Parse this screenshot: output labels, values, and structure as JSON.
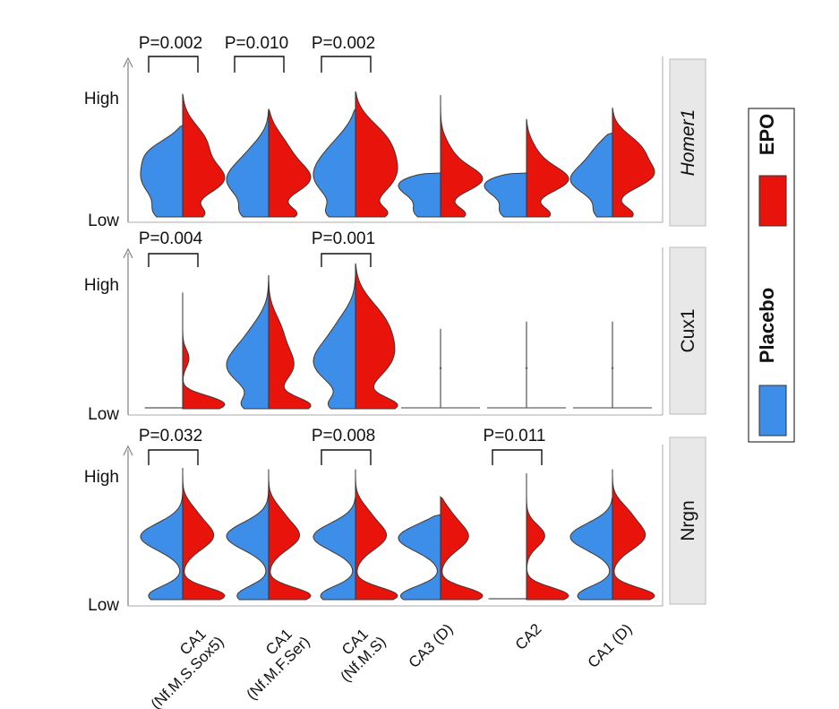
{
  "chart_data": {
    "type": "violin",
    "categories": [
      "CA1\n(Nf.M.S.Sox5)",
      "CA1\n(Nf.M.F.Ser)",
      "CA1\n(Nf.M.S)",
      "CA3 (D)",
      "CA2",
      "CA1 (D)"
    ],
    "y_axis": {
      "high_label": "High",
      "low_label": "Low"
    },
    "legend": [
      {
        "name": "EPO",
        "color": "#e8140c"
      },
      {
        "name": "Placebo",
        "color": "#3d8ee8"
      }
    ],
    "panels": [
      {
        "gene": "Homer1",
        "italic": true,
        "pvalues": [
          {
            "category_index": 0,
            "label": "P=0.002"
          },
          {
            "category_index": 1,
            "label": "P=0.010"
          },
          {
            "category_index": 2,
            "label": "P=0.002"
          }
        ],
        "violins": [
          {
            "placebo": {
              "max": 0.73,
              "peaks": [
                [
                  0.02,
                  0.35,
                  0.08
                ],
                [
                  0.33,
                  1.0,
                  0.18
                ],
                [
                  0.55,
                  0.55,
                  0.1
                ]
              ]
            },
            "epo": {
              "max": 0.98,
              "peaks": [
                [
                  0.02,
                  0.45,
                  0.06
                ],
                [
                  0.3,
                  1.0,
                  0.12
                ],
                [
                  0.6,
                  0.75,
                  0.15
                ]
              ]
            }
          },
          {
            "placebo": {
              "max": 0.86,
              "peaks": [
                [
                  0.02,
                  0.4,
                  0.08
                ],
                [
                  0.3,
                  0.95,
                  0.15
                ],
                [
                  0.55,
                  0.3,
                  0.12
                ]
              ]
            },
            "epo": {
              "max": 0.86,
              "peaks": [
                [
                  0.02,
                  0.55,
                  0.06
                ],
                [
                  0.3,
                  0.9,
                  0.12
                ],
                [
                  0.55,
                  0.55,
                  0.15
                ]
              ]
            }
          },
          {
            "placebo": {
              "max": 0.86,
              "peaks": [
                [
                  0.02,
                  0.4,
                  0.07
                ],
                [
                  0.33,
                  1.0,
                  0.18
                ],
                [
                  0.6,
                  0.4,
                  0.15
                ]
              ]
            },
            "epo": {
              "max": 1.0,
              "peaks": [
                [
                  0.02,
                  0.55,
                  0.06
                ],
                [
                  0.35,
                  1.0,
                  0.18
                ],
                [
                  0.65,
                  0.75,
                  0.15
                ]
              ]
            }
          },
          {
            "placebo": {
              "max": 0.35,
              "peaks": [
                [
                  0.03,
                  0.3,
                  0.07
                ],
                [
                  0.3,
                  1.0,
                  0.12
                ]
              ]
            },
            "epo": {
              "max": 0.97,
              "peaks": [
                [
                  0.02,
                  0.55,
                  0.06
                ],
                [
                  0.3,
                  1.0,
                  0.1
                ],
                [
                  0.5,
                  0.3,
                  0.12
                ]
              ]
            }
          },
          {
            "placebo": {
              "max": 0.35,
              "peaks": [
                [
                  0.03,
                  0.3,
                  0.07
                ],
                [
                  0.3,
                  1.0,
                  0.12
                ]
              ]
            },
            "epo": {
              "max": 0.78,
              "peaks": [
                [
                  0.02,
                  0.5,
                  0.06
                ],
                [
                  0.3,
                  1.0,
                  0.1
                ],
                [
                  0.5,
                  0.3,
                  0.12
                ]
              ]
            }
          },
          {
            "placebo": {
              "max": 0.67,
              "peaks": [
                [
                  0.03,
                  0.3,
                  0.07
                ],
                [
                  0.3,
                  1.0,
                  0.12
                ],
                [
                  0.55,
                  0.55,
                  0.12
                ]
              ]
            },
            "epo": {
              "max": 0.87,
              "peaks": [
                [
                  0.02,
                  0.5,
                  0.06
                ],
                [
                  0.33,
                  1.0,
                  0.1
                ],
                [
                  0.55,
                  0.95,
                  0.12
                ]
              ]
            }
          }
        ]
      },
      {
        "gene": "Cux1",
        "italic": false,
        "pvalues": [
          {
            "category_index": 0,
            "label": "P=0.004"
          },
          {
            "category_index": 2,
            "label": "P=0.001"
          }
        ],
        "violins": [
          {
            "placebo": {
              "flat": 0.0
            },
            "epo": {
              "max": 0.8,
              "peaks": [
                [
                  0.02,
                  1.0,
                  0.05
                ],
                [
                  0.08,
                  0.3,
                  0.04
                ],
                [
                  0.35,
                  0.2,
                  0.06
                ]
              ]
            }
          },
          {
            "placebo": {
              "max": 0.92,
              "peaks": [
                [
                  0.02,
                  0.45,
                  0.06
                ],
                [
                  0.3,
                  1.0,
                  0.14
                ],
                [
                  0.55,
                  0.35,
                  0.12
                ]
              ]
            },
            "epo": {
              "max": 0.92,
              "peaks": [
                [
                  0.02,
                  0.9,
                  0.06
                ],
                [
                  0.3,
                  0.6,
                  0.12
                ],
                [
                  0.55,
                  0.35,
                  0.12
                ]
              ]
            }
          },
          {
            "placebo": {
              "max": 0.92,
              "peaks": [
                [
                  0.02,
                  0.45,
                  0.06
                ],
                [
                  0.33,
                  1.0,
                  0.15
                ],
                [
                  0.6,
                  0.35,
                  0.12
                ]
              ]
            },
            "epo": {
              "max": 1.0,
              "peaks": [
                [
                  0.02,
                  0.9,
                  0.06
                ],
                [
                  0.35,
                  0.85,
                  0.15
                ],
                [
                  0.62,
                  0.8,
                  0.15
                ]
              ]
            }
          },
          {
            "line": {
              "max": 0.55,
              "mid": 0.28
            }
          },
          {
            "line": {
              "max": 0.6,
              "mid": 0.28
            }
          },
          {
            "line": {
              "max": 0.6,
              "mid": 0.28
            }
          }
        ]
      },
      {
        "gene": "Nrgn",
        "italic": false,
        "pvalues": [
          {
            "category_index": 0,
            "label": "P=0.032"
          },
          {
            "category_index": 2,
            "label": "P=0.008"
          },
          {
            "category_index": 4,
            "label": "P=0.011"
          }
        ],
        "violins": [
          {
            "placebo": {
              "max": 0.78,
              "peaks": [
                [
                  0.03,
                  0.6,
                  0.07
                ],
                [
                  0.47,
                  1.0,
                  0.1
                ]
              ]
            },
            "epo": {
              "max": 0.96,
              "peaks": [
                [
                  0.03,
                  1.0,
                  0.06
                ],
                [
                  0.47,
                  0.9,
                  0.1
                ],
                [
                  0.65,
                  0.3,
                  0.08
                ]
              ]
            }
          },
          {
            "placebo": {
              "max": 0.95,
              "peaks": [
                [
                  0.03,
                  0.6,
                  0.07
                ],
                [
                  0.47,
                  1.0,
                  0.1
                ]
              ]
            },
            "epo": {
              "max": 0.95,
              "peaks": [
                [
                  0.03,
                  1.0,
                  0.06
                ],
                [
                  0.47,
                  0.9,
                  0.1
                ],
                [
                  0.65,
                  0.3,
                  0.08
                ]
              ]
            }
          },
          {
            "placebo": {
              "max": 0.75,
              "peaks": [
                [
                  0.03,
                  0.6,
                  0.07
                ],
                [
                  0.47,
                  1.0,
                  0.1
                ]
              ]
            },
            "epo": {
              "max": 0.95,
              "peaks": [
                [
                  0.03,
                  1.0,
                  0.06
                ],
                [
                  0.47,
                  0.9,
                  0.1
                ],
                [
                  0.65,
                  0.3,
                  0.08
                ]
              ]
            }
          },
          {
            "placebo": {
              "max": 0.62,
              "peaks": [
                [
                  0.03,
                  0.6,
                  0.07
                ],
                [
                  0.47,
                  1.0,
                  0.1
                ]
              ]
            },
            "epo": {
              "max": 0.75,
              "peaks": [
                [
                  0.03,
                  1.0,
                  0.06
                ],
                [
                  0.47,
                  0.9,
                  0.1
                ],
                [
                  0.65,
                  0.3,
                  0.08
                ]
              ]
            }
          },
          {
            "placebo": {
              "flat": 0.0
            },
            "epo": {
              "max": 0.92,
              "peaks": [
                [
                  0.03,
                  1.0,
                  0.06
                ],
                [
                  0.47,
                  0.55,
                  0.08
                ]
              ]
            }
          },
          {
            "placebo": {
              "max": 0.75,
              "peaks": [
                [
                  0.03,
                  0.6,
                  0.07
                ],
                [
                  0.47,
                  1.0,
                  0.1
                ]
              ]
            },
            "epo": {
              "max": 0.95,
              "peaks": [
                [
                  0.03,
                  1.0,
                  0.06
                ],
                [
                  0.47,
                  0.95,
                  0.1
                ],
                [
                  0.65,
                  0.4,
                  0.08
                ]
              ]
            }
          }
        ]
      }
    ]
  }
}
